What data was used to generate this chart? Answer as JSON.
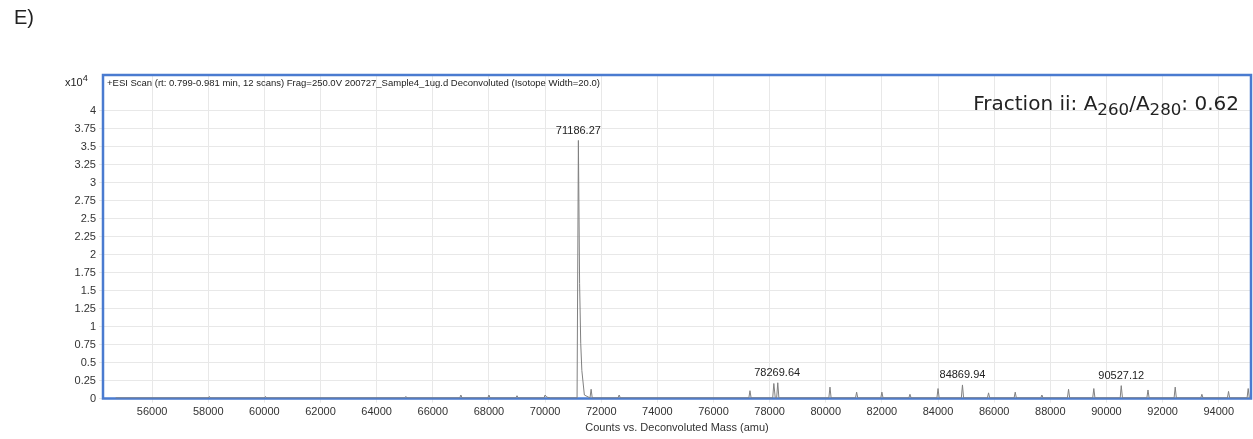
{
  "chart_data": {
    "type": "line",
    "xlabel": "Counts vs. Deconvoluted Mass (amu)",
    "ylabel": "x10$^{4}$",
    "annotations": [
      "E)",
      "+ESI Scan (rt: 0.799-0.981 min, 12 scans) Frag=250.0V 200727_Sample4_1ug.d  Deconvoluted (Isotope Width=20.0)",
      "Fraction ii: A$_{260}$/A$_{280}$: 0.62",
      {
        "text": "71186.27",
        "x": 71186.27,
        "y": 3.59
      },
      {
        "text": "78269.64",
        "x": 78269.64,
        "y": 0.22
      },
      {
        "text": "84869.94",
        "x": 84869.94,
        "y": 0.19
      },
      {
        "text": "90527.12",
        "x": 90527.12,
        "y": 0.18
      }
    ],
    "series": [
      {
        "color": "#808080",
        "x": [
          54700,
          58000,
          58040,
          58080,
          60000,
          60040,
          60080,
          65000,
          65040,
          65080,
          66960,
          67000,
          67040,
          67960,
          68000,
          68040,
          68960,
          69000,
          69040,
          69960,
          70000,
          70060,
          70200,
          71140,
          71186.27,
          71230,
          71270,
          71310,
          71400,
          71600,
          71640,
          71680,
          72600,
          72640,
          72680,
          77260,
          77300,
          77340,
          78110,
          78150,
          78200,
          78250,
          78290,
          78330,
          80110,
          80150,
          80190,
          81060,
          81100,
          81140,
          81960,
          82000,
          82040,
          82960,
          83000,
          83040,
          83960,
          84000,
          84040,
          84830,
          84869.94,
          84910,
          85760,
          85800,
          85840,
          86710,
          86750,
          86790,
          87660,
          87700,
          87740,
          88610,
          88650,
          88690,
          89510,
          89550,
          89590,
          90490,
          90527.12,
          90570,
          91440,
          91480,
          91520,
          92410,
          92450,
          92490,
          93360,
          93400,
          93440,
          94310,
          94350,
          94390,
          95010,
          95050,
          95090,
          95100
        ],
        "values": [
          0.01,
          0.01,
          0.03,
          0.01,
          0.01,
          0.03,
          0.01,
          0.01,
          0.03,
          0.01,
          0.01,
          0.05,
          0.01,
          0.01,
          0.05,
          0.01,
          0.01,
          0.04,
          0.01,
          0.01,
          0.05,
          0.02,
          0.01,
          0.01,
          3.59,
          1.6,
          0.77,
          0.39,
          0.05,
          0.01,
          0.13,
          0.01,
          0.01,
          0.05,
          0.01,
          0.01,
          0.11,
          0.01,
          0.01,
          0.21,
          0.01,
          0.01,
          0.22,
          0.01,
          0.01,
          0.16,
          0.01,
          0.01,
          0.09,
          0.01,
          0.01,
          0.09,
          0.01,
          0.01,
          0.06,
          0.01,
          0.01,
          0.14,
          0.01,
          0.01,
          0.19,
          0.01,
          0.01,
          0.08,
          0.01,
          0.01,
          0.09,
          0.01,
          0.01,
          0.05,
          0.01,
          0.01,
          0.13,
          0.01,
          0.01,
          0.14,
          0.01,
          0.01,
          0.18,
          0.01,
          0.01,
          0.12,
          0.01,
          0.01,
          0.16,
          0.01,
          0.01,
          0.06,
          0.01,
          0.01,
          0.1,
          0.01,
          0.01,
          0.14,
          0.01,
          0.01
        ]
      }
    ],
    "xlim": [
      54250,
      95150
    ],
    "xticks": [
      56000,
      58000,
      60000,
      62000,
      64000,
      66000,
      68000,
      70000,
      72000,
      74000,
      76000,
      78000,
      80000,
      82000,
      84000,
      86000,
      88000,
      90000,
      92000,
      94000
    ],
    "ylim": [
      0,
      4.5
    ],
    "yticks": [
      0,
      0.25,
      0.5,
      0.75,
      1,
      1.25,
      1.5,
      1.75,
      2,
      2.25,
      2.5,
      2.75,
      3,
      3.25,
      3.5,
      3.75,
      4
    ],
    "grid": true,
    "legend": false,
    "marker": "none",
    "line_style": "solid"
  }
}
